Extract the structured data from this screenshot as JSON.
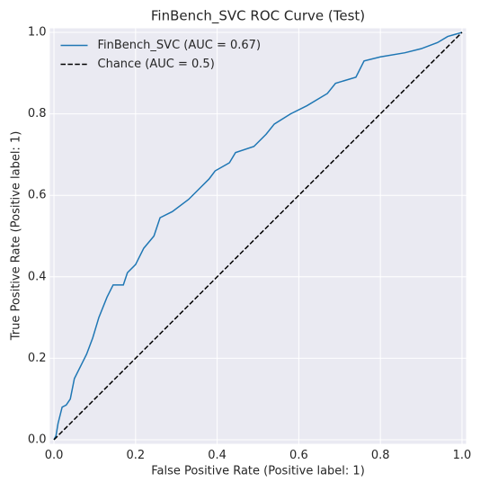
{
  "chart_data": {
    "type": "line",
    "title": "FinBench_SVC ROC Curve (Test)",
    "xlabel": "False Positive Rate (Positive label: 1)",
    "ylabel": "True Positive Rate (Positive label: 1)",
    "xlim": [
      -0.01,
      1.01
    ],
    "ylim": [
      -0.01,
      1.01
    ],
    "xticks": [
      {
        "value": 0,
        "label": "0.0"
      },
      0.2,
      0.4,
      0.6,
      0.8,
      {
        "value": 1,
        "label": "1.0"
      }
    ],
    "yticks": [
      {
        "value": 0,
        "label": "0.0"
      },
      0.2,
      0.4,
      0.6,
      0.8,
      {
        "value": 1,
        "label": "1.0"
      }
    ],
    "grid": true,
    "legend": "upper left",
    "series": [
      {
        "name": "FinBench_SVC (AUC = 0.67)",
        "color": "#1f77b4",
        "dashed": false,
        "x": [
          0,
          0.005,
          0.01,
          0.02,
          0.03,
          0.04,
          0.05,
          0.07,
          0.08,
          0.095,
          0.11,
          0.13,
          0.145,
          0.17,
          0.18,
          0.2,
          0.22,
          0.245,
          0.26,
          0.29,
          0.33,
          0.36,
          0.38,
          0.395,
          0.43,
          0.445,
          0.49,
          0.52,
          0.54,
          0.58,
          0.62,
          0.67,
          0.69,
          0.74,
          0.76,
          0.8,
          0.86,
          0.9,
          0.94,
          0.965,
          1.0
        ],
        "values": [
          0,
          0.01,
          0.04,
          0.08,
          0.085,
          0.1,
          0.15,
          0.19,
          0.21,
          0.25,
          0.3,
          0.35,
          0.38,
          0.38,
          0.41,
          0.43,
          0.47,
          0.5,
          0.545,
          0.56,
          0.59,
          0.62,
          0.64,
          0.66,
          0.68,
          0.705,
          0.72,
          0.75,
          0.775,
          0.8,
          0.82,
          0.85,
          0.875,
          0.89,
          0.93,
          0.94,
          0.95,
          0.96,
          0.975,
          0.99,
          1.0
        ]
      },
      {
        "name": "Chance (AUC = 0.5)",
        "color": "#000000",
        "dashed": true,
        "x": [
          0,
          1
        ],
        "values": [
          0,
          1
        ]
      }
    ]
  }
}
